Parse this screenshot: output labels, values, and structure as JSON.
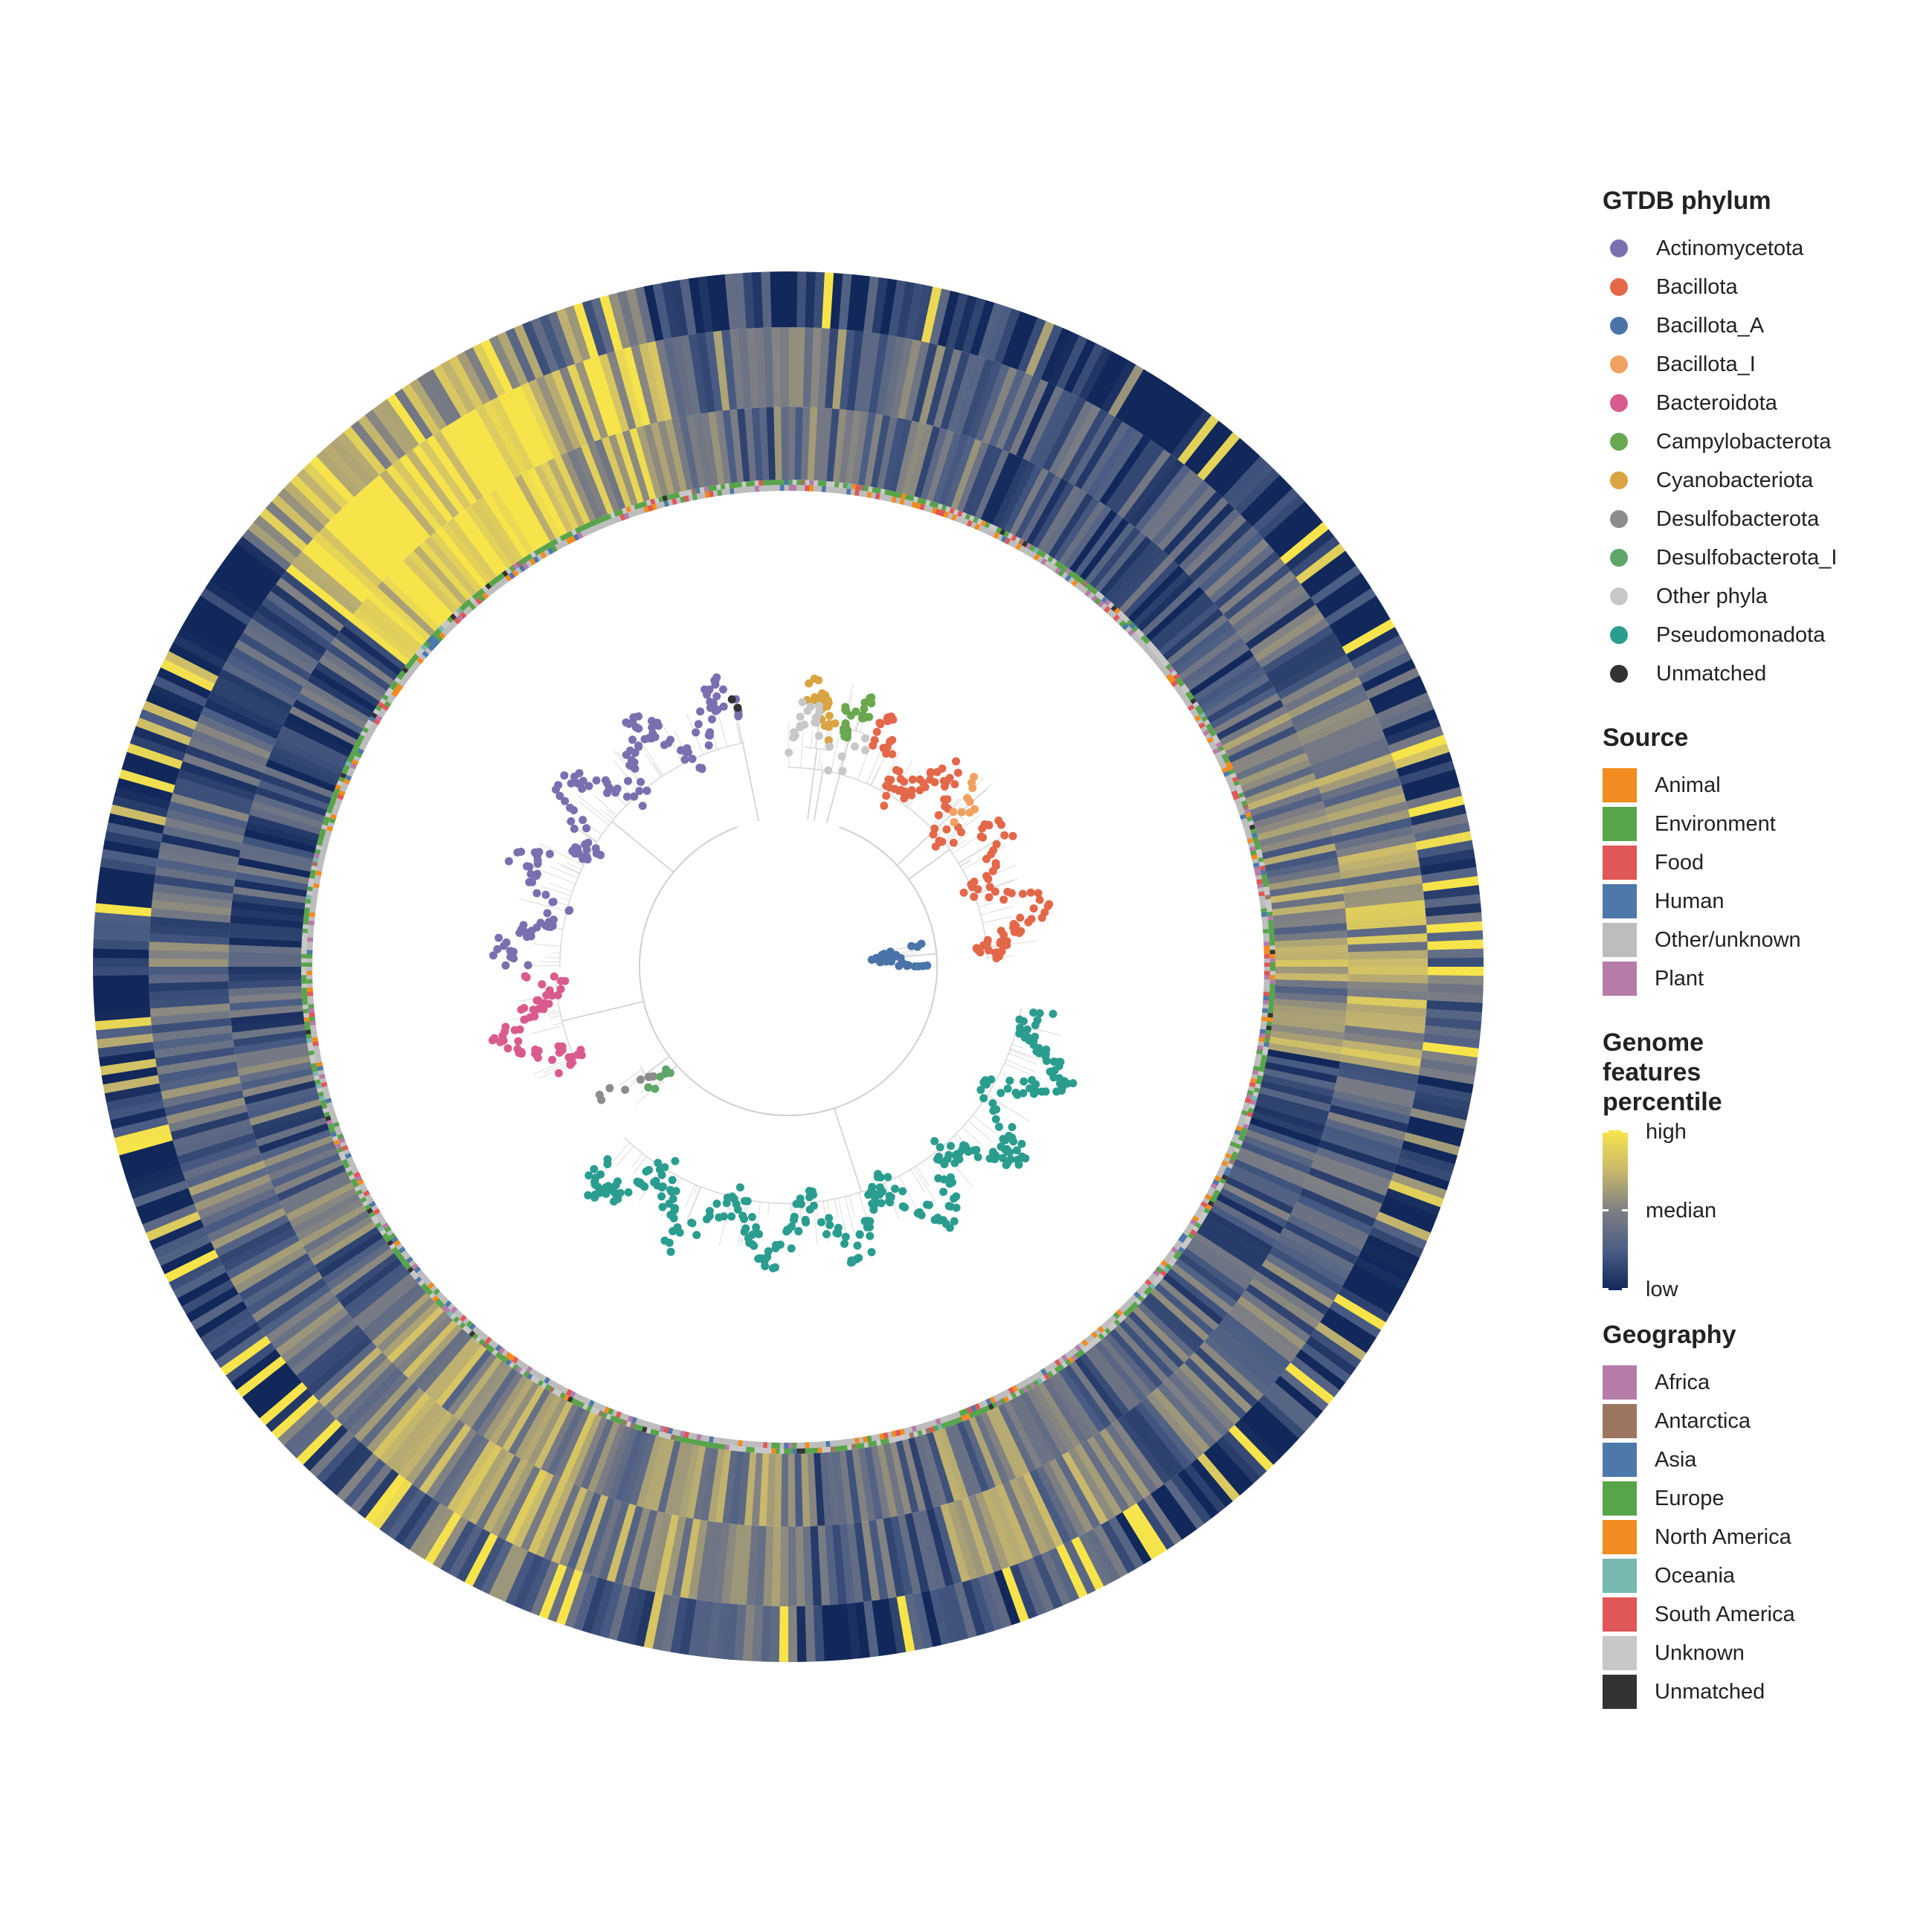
{
  "figure": {
    "legend": {
      "phylum": {
        "title": "GTDB phylum",
        "items": [
          {
            "label": "Actinomycetota",
            "color": "#7b6fb0"
          },
          {
            "label": "Bacillota",
            "color": "#e3684a"
          },
          {
            "label": "Bacillota_A",
            "color": "#4a74a8"
          },
          {
            "label": "Bacillota_I",
            "color": "#f0a160"
          },
          {
            "label": "Bacteroidota",
            "color": "#d95b8e"
          },
          {
            "label": "Campylobacterota",
            "color": "#6aa84f"
          },
          {
            "label": "Cyanobacteriota",
            "color": "#d9a441"
          },
          {
            "label": "Desulfobacterota",
            "color": "#8c8c8c"
          },
          {
            "label": "Desulfobacterota_I",
            "color": "#5fa56a"
          },
          {
            "label": "Other phyla",
            "color": "#c8c8c8"
          },
          {
            "label": "Pseudomonadota",
            "color": "#2a9d8f"
          },
          {
            "label": "Unmatched",
            "color": "#333333"
          }
        ]
      },
      "source": {
        "title": "Source",
        "items": [
          {
            "label": "Animal",
            "color": "#f28b20"
          },
          {
            "label": "Environment",
            "color": "#58a44b"
          },
          {
            "label": "Food",
            "color": "#e05757"
          },
          {
            "label": "Human",
            "color": "#4d78aa"
          },
          {
            "label": "Other/unknown",
            "color": "#bdbdbd"
          },
          {
            "label": "Plant",
            "color": "#b57ca8"
          }
        ]
      },
      "genome_features": {
        "title_lines": [
          "Genome",
          "features",
          "percentile"
        ],
        "high_label": "high",
        "median_label": "median",
        "low_label": "low",
        "colors": [
          "#f7e44b",
          "#c9b96c",
          "#7e7f84",
          "#4b5d84",
          "#12285a"
        ]
      },
      "geography": {
        "title": "Geography",
        "items": [
          {
            "label": "Africa",
            "color": "#b57ca8"
          },
          {
            "label": "Antarctica",
            "color": "#9c7660"
          },
          {
            "label": "Asia",
            "color": "#4d78aa"
          },
          {
            "label": "Europe",
            "color": "#58a44b"
          },
          {
            "label": "North America",
            "color": "#f28b20"
          },
          {
            "label": "Oceania",
            "color": "#78b8b0"
          },
          {
            "label": "South America",
            "color": "#e05757"
          },
          {
            "label": "Unknown",
            "color": "#c8c8c8"
          },
          {
            "label": "Unmatched",
            "color": "#333333"
          }
        ]
      }
    },
    "heatmap_sectors": [
      {
        "start": 0,
        "end": 20,
        "tone": 0.35
      },
      {
        "start": 20,
        "end": 45,
        "tone": 0.2
      },
      {
        "start": 45,
        "end": 62,
        "tone": 0.25
      },
      {
        "start": 62,
        "end": 82,
        "tone": 0.45
      },
      {
        "start": 82,
        "end": 100,
        "tone": 0.55
      },
      {
        "start": 100,
        "end": 112,
        "tone": 0.2
      },
      {
        "start": 112,
        "end": 145,
        "tone": 0.3
      },
      {
        "start": 145,
        "end": 165,
        "tone": 0.45
      },
      {
        "start": 165,
        "end": 178,
        "tone": 0.3
      },
      {
        "start": 178,
        "end": 200,
        "tone": 0.5
      },
      {
        "start": 200,
        "end": 212,
        "tone": 0.6
      },
      {
        "start": 212,
        "end": 228,
        "tone": 0.55
      },
      {
        "start": 228,
        "end": 250,
        "tone": 0.35
      },
      {
        "start": 250,
        "end": 272,
        "tone": 0.3
      },
      {
        "start": 272,
        "end": 308,
        "tone": 0.25
      },
      {
        "start": 308,
        "end": 335,
        "tone": 0.9
      },
      {
        "start": 335,
        "end": 348,
        "tone": 0.7
      },
      {
        "start": 348,
        "end": 360,
        "tone": 0.35
      }
    ],
    "tip_clusters": [
      {
        "phylum": "Actinomycetota",
        "start": 270,
        "end": 349,
        "radius": 0.62,
        "count": 170
      },
      {
        "phylum": "Bacteroidota",
        "start": 245,
        "end": 268,
        "radius": 0.63,
        "count": 60
      },
      {
        "phylum": "Desulfobacterota",
        "start": 230,
        "end": 236,
        "radius": 0.5,
        "count": 8
      },
      {
        "phylum": "Desulfobacterota_I",
        "start": 227,
        "end": 230,
        "radius": 0.48,
        "count": 6
      },
      {
        "phylum": "Pseudomonadota",
        "start": 100,
        "end": 224,
        "radius": 0.64,
        "count": 320
      },
      {
        "phylum": "Cyanobacteriota",
        "start": 4,
        "end": 11,
        "radius": 0.6,
        "count": 25
      },
      {
        "phylum": "Campylobacterota",
        "start": 12,
        "end": 18,
        "radius": 0.66,
        "count": 25
      },
      {
        "phylum": "Bacillota",
        "start": 20,
        "end": 88,
        "radius": 0.55,
        "count": 140
      },
      {
        "phylum": "Bacillota_I",
        "start": 44,
        "end": 50,
        "radius": 0.62,
        "count": 10
      },
      {
        "phylum": "Bacillota_A",
        "start": 80,
        "end": 90,
        "radius": 0.3,
        "count": 30
      },
      {
        "phylum": "Other phyla",
        "start": 0,
        "end": 20,
        "radius": 0.55,
        "count": 25
      },
      {
        "phylum": "Unmatched",
        "start": 348,
        "end": 349,
        "radius": 0.62,
        "count": 2
      }
    ]
  }
}
